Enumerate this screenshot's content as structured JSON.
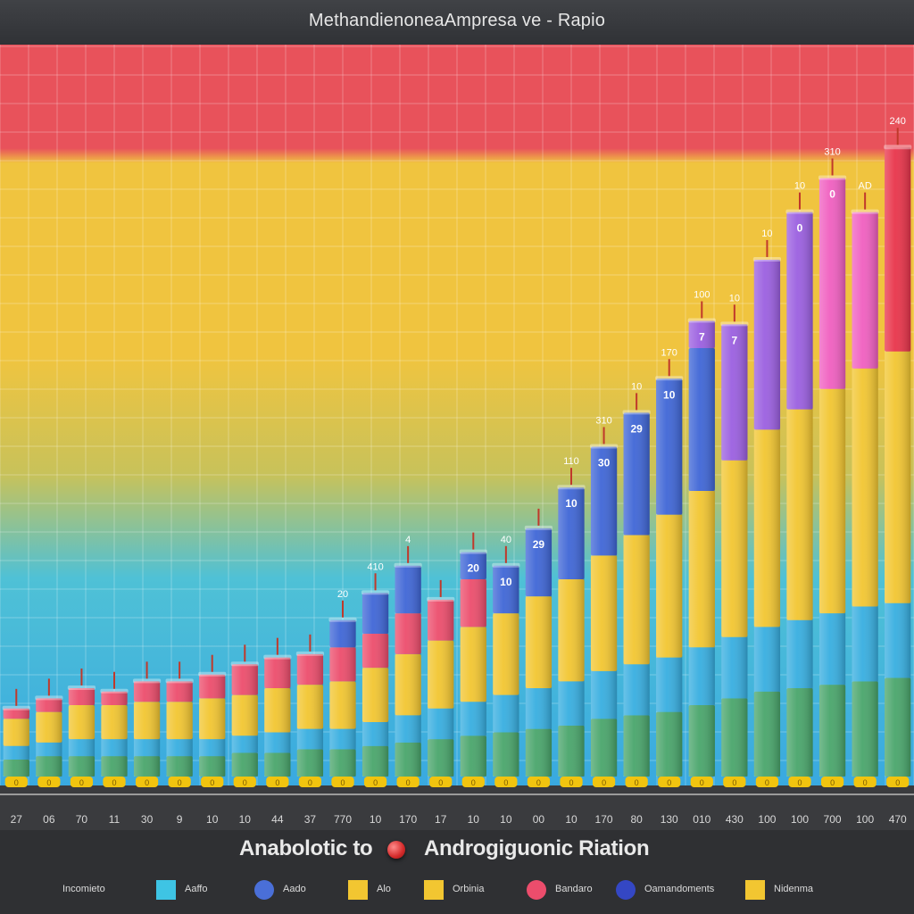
{
  "chart_data": {
    "type": "bar",
    "title": "MethandienoneaAmpresa ve - Rapio",
    "xlabel": "Anabolotic to",
    "xlabel_2": "Androgiguonic Riation",
    "ylabel": "",
    "stacked": true,
    "categories": [
      "27",
      "06",
      "70",
      "11",
      "30",
      "9",
      "10",
      "10",
      "44",
      "37",
      "770",
      "10",
      "170",
      "17",
      "10",
      "10",
      "00",
      "10",
      "170",
      "80",
      "130",
      "010",
      "430",
      "100",
      "100",
      "700",
      "100",
      "470"
    ],
    "series": [
      {
        "color": "#49a56b",
        "values": [
          5,
          6,
          6,
          6,
          6,
          6,
          6,
          7,
          7,
          8,
          8,
          9,
          10,
          11,
          12,
          13,
          14,
          15,
          17,
          18,
          19,
          21,
          23,
          25,
          26,
          27,
          28,
          29
        ]
      },
      {
        "color": "#37aee0",
        "values": [
          4,
          4,
          5,
          5,
          5,
          5,
          5,
          5,
          6,
          6,
          6,
          7,
          8,
          9,
          10,
          11,
          12,
          13,
          14,
          15,
          16,
          17,
          18,
          19,
          20,
          21,
          22,
          22
        ]
      },
      {
        "color": "#f2c631",
        "values": [
          8,
          9,
          10,
          10,
          11,
          11,
          12,
          12,
          13,
          13,
          14,
          16,
          18,
          20,
          22,
          24,
          27,
          30,
          34,
          38,
          42,
          46,
          52,
          58,
          62,
          66,
          70,
          74
        ]
      },
      {
        "color": "#ec4d6c",
        "values": [
          3,
          4,
          5,
          4,
          6,
          6,
          7,
          9,
          9,
          9,
          10,
          10,
          12,
          12,
          14,
          0,
          0,
          0,
          0,
          0,
          0,
          0,
          0,
          0,
          0,
          0,
          0,
          0
        ]
      },
      {
        "color": "#3f66d6",
        "values": [
          0,
          0,
          0,
          0,
          0,
          0,
          0,
          0,
          0,
          0,
          8,
          12,
          14,
          0,
          8,
          14,
          20,
          27,
          32,
          36,
          40,
          42,
          0,
          0,
          0,
          0,
          0,
          0
        ]
      },
      {
        "color": "#9b5fe0",
        "values": [
          0,
          0,
          0,
          0,
          0,
          0,
          0,
          0,
          0,
          0,
          0,
          0,
          0,
          0,
          0,
          0,
          0,
          0,
          0,
          0,
          0,
          8,
          40,
          50,
          58,
          0,
          0,
          0
        ]
      },
      {
        "color": "#f05fc0",
        "values": [
          0,
          0,
          0,
          0,
          0,
          0,
          0,
          0,
          0,
          0,
          0,
          0,
          0,
          0,
          0,
          0,
          0,
          0,
          0,
          0,
          0,
          0,
          0,
          0,
          0,
          62,
          46,
          0
        ]
      },
      {
        "color": "#e8344a",
        "values": [
          0,
          0,
          0,
          0,
          0,
          0,
          0,
          0,
          0,
          0,
          0,
          0,
          0,
          0,
          0,
          0,
          0,
          0,
          0,
          0,
          0,
          0,
          0,
          0,
          0,
          0,
          0,
          60
        ]
      }
    ],
    "data_labels": [
      "",
      "",
      "",
      "",
      "",
      "",
      "",
      "",
      "",
      "",
      "",
      "",
      "",
      "",
      "20",
      "10",
      "29",
      "10",
      "30",
      "29",
      "10",
      "7",
      "7",
      "",
      "0",
      "0",
      "",
      ""
    ],
    "top_labels": [
      "",
      "",
      "",
      "",
      "",
      "",
      "",
      "",
      "",
      "",
      "20",
      "410",
      "4",
      "",
      "",
      "40",
      "",
      "110",
      "310",
      "10",
      "170",
      "100",
      "10",
      "10",
      "10",
      "310",
      "AD",
      "240"
    ],
    "ylim": [
      0,
      210
    ],
    "grid": true,
    "background_bands": [
      "#e8525b",
      "#f0c43f",
      "#c8c25a",
      "#4fc1d6",
      "#39a9e0"
    ]
  },
  "legend": [
    {
      "label": "Incomieto",
      "color": "#3ec4e4",
      "shape": "square"
    },
    {
      "label": "Aaffo",
      "color": "#3ec4e4",
      "shape": "square"
    },
    {
      "label": "Aado",
      "color": "#4a6fd8",
      "shape": "round"
    },
    {
      "label": "Alo",
      "color": "#f2c631",
      "shape": "square"
    },
    {
      "label": "Orbinia",
      "color": "#f2c631",
      "shape": "square"
    },
    {
      "label": "Bandaro",
      "color": "#ec4d6c",
      "shape": "round"
    },
    {
      "label": "Oamandoments",
      "color": "#3447c4",
      "shape": "round"
    },
    {
      "label": "Nidenma",
      "color": "#f2c631",
      "shape": "square"
    }
  ]
}
